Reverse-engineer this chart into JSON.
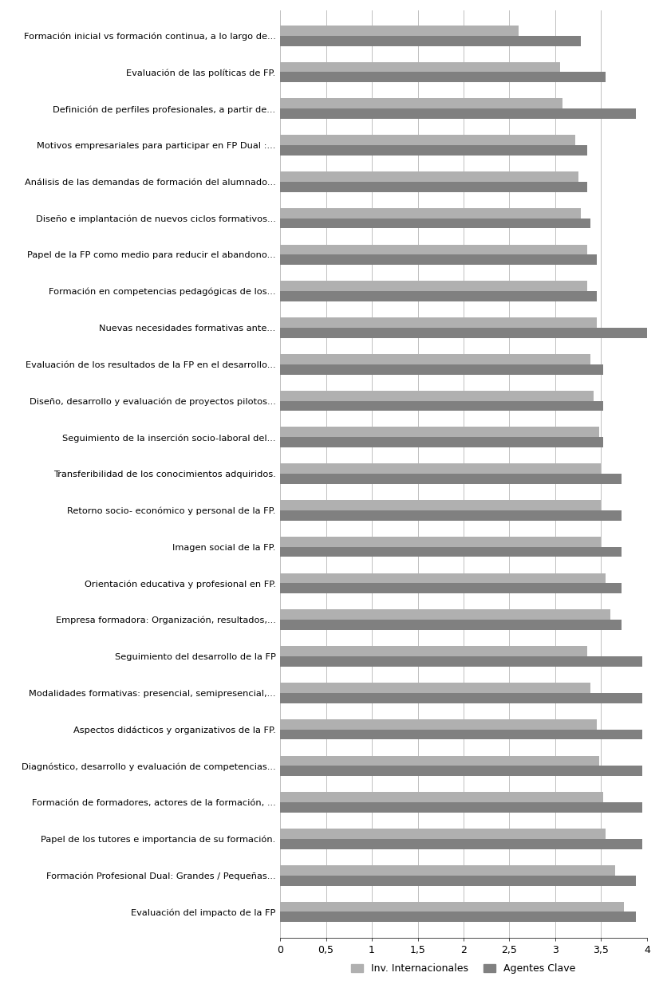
{
  "categories": [
    "Evaluación del impacto de la FP",
    "Formación Profesional Dual: Grandes / Pequeñas...",
    "Papel de los tutores e importancia de su formación.",
    "Formación de formadores, actores de la formación, ...",
    "Diagnóstico, desarrollo y evaluación de competencias...",
    "Aspectos didácticos y organizativos de la FP.",
    "Modalidades formativas: presencial, semipresencial,...",
    "Seguimiento del desarrollo de la FP",
    "Empresa formadora: Organización, resultados,...",
    "Orientación educativa y profesional en FP.",
    "Imagen social de la FP.",
    "Retorno socio- económico y personal de la FP.",
    "Transferibilidad de los conocimientos adquiridos.",
    "Seguimiento de la inserción socio-laboral del...",
    "Diseño, desarrollo y evaluación de proyectos pilotos...",
    "Evaluación de los resultados de la FP en el desarrollo...",
    "Nuevas necesidades formativas ante...",
    "Formación en competencias pedagógicas de los...",
    "Papel de la FP como medio para reducir el abandono...",
    "Diseño e implantación de nuevos ciclos formativos...",
    "Análisis de las demandas de formación del alumnado...",
    "Motivos empresariales para participar en FP Dual :...",
    "Definición de perfiles profesionales, a partir de...",
    "Evaluación de las políticas de FP.",
    "Formación inicial vs formación continua, a lo largo de..."
  ],
  "inv_internacionales": [
    3.75,
    3.65,
    3.55,
    3.52,
    3.48,
    3.45,
    3.38,
    3.35,
    3.6,
    3.55,
    3.5,
    3.5,
    3.5,
    3.48,
    3.42,
    3.38,
    3.45,
    3.35,
    3.35,
    3.28,
    3.25,
    3.22,
    3.08,
    3.05,
    2.6
  ],
  "agentes_clave": [
    3.88,
    3.88,
    3.95,
    3.95,
    3.95,
    3.95,
    3.95,
    3.95,
    3.72,
    3.72,
    3.72,
    3.72,
    3.72,
    3.52,
    3.52,
    3.52,
    4.0,
    3.45,
    3.45,
    3.38,
    3.35,
    3.35,
    3.88,
    3.55,
    3.28
  ],
  "color_inv": "#b0b0b0",
  "color_agentes": "#808080",
  "xlim": [
    0,
    4
  ],
  "xticks": [
    0,
    0.5,
    1,
    1.5,
    2,
    2.5,
    3,
    3.5,
    4
  ],
  "xtick_labels": [
    "0",
    "0,5",
    "1",
    "1,5",
    "2",
    "2,5",
    "3",
    "3,5",
    "4"
  ],
  "legend_inv": "Inv. Internacionales",
  "legend_agentes": "Agentes Clave",
  "bar_height": 0.28,
  "figure_width": 8.36,
  "figure_height": 12.64
}
